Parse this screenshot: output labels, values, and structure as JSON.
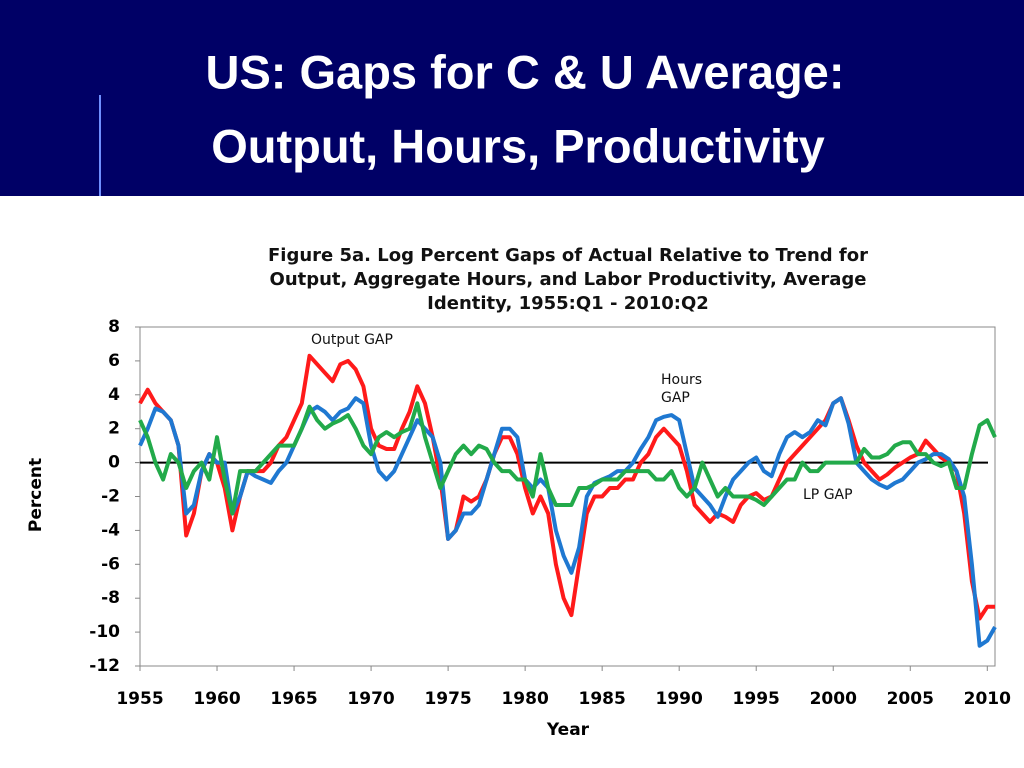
{
  "slide": {
    "title": [
      "US: Gaps for C & U Average:",
      "Output, Hours, Productivity"
    ]
  },
  "chart_data": {
    "type": "line",
    "title": [
      "Figure 5a. Log Percent Gaps of Actual Relative to Trend for",
      "Output,  Aggregate Hours, and Labor Productivity, Average",
      "Identity, 1955:Q1 - 2010:Q2"
    ],
    "xlabel": "Year",
    "ylabel": "Percent",
    "annotations": [
      [
        "Output GAP"
      ],
      [
        "Hours",
        "GAP"
      ],
      [
        "LP GAP"
      ]
    ],
    "xlim": [
      1955,
      2010.5
    ],
    "ylim": [
      -12,
      8
    ],
    "xticks": [
      1955,
      1960,
      1965,
      1970,
      1975,
      1980,
      1985,
      1990,
      1995,
      2000,
      2005,
      2010
    ],
    "yticks": [
      -12,
      -10,
      -8,
      -6,
      -4,
      -2,
      0,
      2,
      4,
      6,
      8
    ],
    "zero_line": true,
    "grid": false,
    "x": [
      1955,
      1955.5,
      1956,
      1956.5,
      1957,
      1957.5,
      1958,
      1958.5,
      1959,
      1959.5,
      1960,
      1960.5,
      1961,
      1961.5,
      1962,
      1962.5,
      1963,
      1963.5,
      1964,
      1964.5,
      1965,
      1965.5,
      1966,
      1966.5,
      1967,
      1967.5,
      1968,
      1968.5,
      1969,
      1969.5,
      1970,
      1970.5,
      1971,
      1971.5,
      1972,
      1972.5,
      1973,
      1973.5,
      1974,
      1974.5,
      1975,
      1975.5,
      1976,
      1976.5,
      1977,
      1977.5,
      1978,
      1978.5,
      1979,
      1979.5,
      1980,
      1980.5,
      1981,
      1981.5,
      1982,
      1982.5,
      1983,
      1983.5,
      1984,
      1984.5,
      1985,
      1985.5,
      1986,
      1986.5,
      1987,
      1987.5,
      1988,
      1988.5,
      1989,
      1989.5,
      1990,
      1990.5,
      1991,
      1991.5,
      1992,
      1992.5,
      1993,
      1993.5,
      1994,
      1994.5,
      1995,
      1995.5,
      1996,
      1996.5,
      1997,
      1997.5,
      1998,
      1998.5,
      1999,
      1999.5,
      2000,
      2000.5,
      2001,
      2001.5,
      2002,
      2002.5,
      2003,
      2003.5,
      2004,
      2004.5,
      2005,
      2005.5,
      2006,
      2006.5,
      2007,
      2007.5,
      2008,
      2008.5,
      2009,
      2009.5,
      2010,
      2010.5
    ],
    "series": [
      {
        "name": "Output GAP",
        "color": "#ff1a1a",
        "values": [
          3.5,
          4.3,
          3.5,
          3,
          2.5,
          1,
          -4.3,
          -3,
          -0.5,
          0.5,
          0,
          -1.5,
          -4,
          -2,
          -0.5,
          -0.5,
          -0.5,
          0,
          1,
          1.5,
          2.5,
          3.5,
          6.3,
          5.8,
          5.3,
          4.8,
          5.8,
          6,
          5.5,
          4.5,
          2,
          1,
          0.8,
          0.8,
          2,
          3,
          4.5,
          3.5,
          1.5,
          -1,
          -4.5,
          -4,
          -2,
          -2.3,
          -2,
          -1,
          0.5,
          1.5,
          1.5,
          0.5,
          -1.5,
          -3,
          -2,
          -3,
          -6,
          -8,
          -9,
          -6,
          -3,
          -2,
          -2,
          -1.5,
          -1.5,
          -1,
          -1,
          0,
          0.5,
          1.5,
          2,
          1.5,
          1,
          -0.5,
          -2.5,
          -3,
          -3.5,
          -3,
          -3.2,
          -3.5,
          -2.5,
          -2,
          -1.8,
          -2.2,
          -2,
          -1,
          0,
          0.5,
          1,
          1.5,
          2,
          2.5,
          3.5,
          3.8,
          2.5,
          1,
          0,
          -0.5,
          -1,
          -0.7,
          -0.3,
          0,
          0.3,
          0.5,
          1.3,
          0.8,
          0.3,
          0,
          -0.5,
          -3,
          -7,
          -9.2,
          -8.5,
          -8.5
        ]
      },
      {
        "name": "Hours GAP",
        "color": "#1f78d1",
        "values": [
          1,
          2,
          3.2,
          3,
          2.5,
          1,
          -3,
          -2.5,
          -0.5,
          0.5,
          0,
          0,
          -3,
          -2,
          -0.5,
          -0.8,
          -1,
          -1.2,
          -0.5,
          0,
          1,
          2,
          3,
          3.3,
          3,
          2.5,
          3,
          3.2,
          3.8,
          3.5,
          1,
          -0.5,
          -1,
          -0.5,
          0.5,
          1.5,
          2.5,
          2,
          1.5,
          0,
          -4.5,
          -4,
          -3,
          -3,
          -2.5,
          -1,
          0.5,
          2,
          2,
          1.5,
          -1,
          -1.5,
          -1,
          -1.5,
          -4,
          -5.5,
          -6.5,
          -5,
          -2,
          -1.2,
          -1,
          -0.8,
          -0.5,
          -0.5,
          0,
          0.8,
          1.5,
          2.5,
          2.7,
          2.8,
          2.5,
          0.5,
          -1.5,
          -2,
          -2.5,
          -3.2,
          -2,
          -1,
          -0.5,
          0,
          0.3,
          -0.5,
          -0.8,
          0.5,
          1.5,
          1.8,
          1.5,
          1.8,
          2.5,
          2.2,
          3.5,
          3.8,
          2.3,
          0,
          -0.5,
          -1,
          -1.3,
          -1.5,
          -1.2,
          -1,
          -0.5,
          0,
          0.2,
          0.5,
          0.5,
          0.2,
          -0.5,
          -2,
          -6,
          -10.8,
          -10.5,
          -9.7
        ]
      },
      {
        "name": "LP GAP",
        "color": "#22aa4a",
        "values": [
          2.5,
          1.5,
          0,
          -1,
          0.5,
          0,
          -1.5,
          -0.5,
          0,
          -1,
          1.5,
          -1,
          -3,
          -0.5,
          -0.5,
          -0.5,
          0,
          0.5,
          1,
          1,
          1,
          2,
          3.3,
          2.5,
          2,
          2.3,
          2.5,
          2.8,
          2,
          1,
          0.5,
          1.5,
          1.8,
          1.5,
          1.8,
          2,
          3.5,
          1.5,
          0,
          -1.5,
          -0.5,
          0.5,
          1,
          0.5,
          1,
          0.8,
          0,
          -0.5,
          -0.5,
          -1,
          -1,
          -2,
          0.5,
          -1.5,
          -2.5,
          -2.5,
          -2.5,
          -1.5,
          -1.5,
          -1.3,
          -1,
          -1,
          -1,
          -0.5,
          -0.5,
          -0.5,
          -0.5,
          -1,
          -1,
          -0.5,
          -1.5,
          -2,
          -1.5,
          0,
          -1,
          -2,
          -1.5,
          -2,
          -2,
          -2,
          -2.2,
          -2.5,
          -2,
          -1.5,
          -1,
          -1,
          0,
          -0.5,
          -0.5,
          0,
          0,
          0,
          0,
          0,
          0.8,
          0.3,
          0.3,
          0.5,
          1,
          1.2,
          1.2,
          0.5,
          0.5,
          0,
          -0.2,
          0,
          -1.5,
          -1.5,
          0.5,
          2.2,
          2.5,
          1.5
        ]
      }
    ]
  }
}
